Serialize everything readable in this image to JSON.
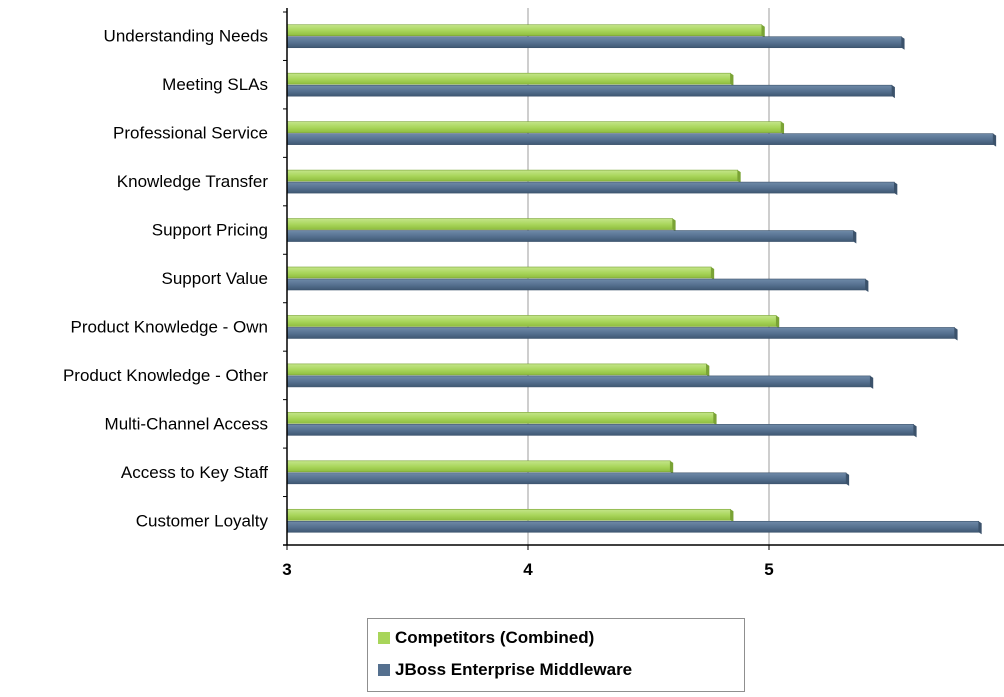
{
  "chart_data": {
    "type": "bar",
    "orientation": "horizontal",
    "title": "",
    "xlabel": "",
    "ylabel": "",
    "xlim": [
      3,
      6
    ],
    "x_ticks": [
      "3",
      "4",
      "5",
      "6"
    ],
    "grid": "vertical",
    "legend_position": "bottom",
    "categories": [
      "Understanding Needs",
      "Meeting SLAs",
      "Professional Service",
      "Knowledge Transfer",
      "Support Pricing",
      "Support Value",
      "Product Knowledge - Own",
      "Product Knowledge - Other",
      "Multi-Channel Access",
      "Access to Key Staff",
      "Customer Loyalty"
    ],
    "series": [
      {
        "name": "Competitors (Combined)",
        "color": "#a8d55a",
        "values": [
          4.97,
          4.84,
          5.05,
          4.87,
          4.6,
          4.76,
          5.03,
          4.74,
          4.77,
          4.59,
          4.84
        ]
      },
      {
        "name": "JBoss Enterprise Middleware",
        "color": "#55708f",
        "values": [
          5.55,
          5.51,
          5.93,
          5.52,
          5.35,
          5.4,
          5.77,
          5.42,
          5.6,
          5.32,
          5.87
        ]
      }
    ]
  },
  "legend": {
    "items": [
      {
        "label": "Competitors (Combined)",
        "color": "#a8d55a"
      },
      {
        "label": "JBoss Enterprise Middleware",
        "color": "#55708f"
      }
    ]
  }
}
